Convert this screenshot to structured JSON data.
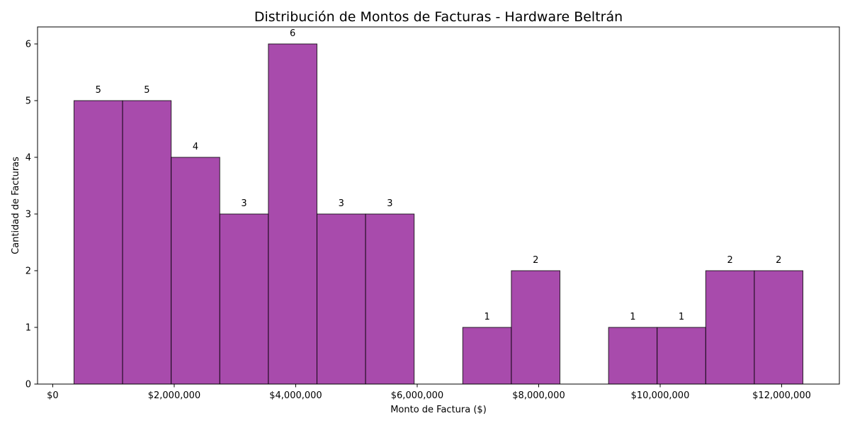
{
  "chart_data": {
    "type": "bar",
    "title": "Distribución de Montos de Facturas - Hardware Beltrán",
    "xlabel": "Monto de Factura ($)",
    "ylabel": "Cantidad de Facturas",
    "bar_color": "#9b30a0",
    "bar_edge_color": "#000000",
    "bins": [
      {
        "start": 350000,
        "end": 1150000,
        "count": 5
      },
      {
        "start": 1150000,
        "end": 1950000,
        "count": 5
      },
      {
        "start": 1950000,
        "end": 2750000,
        "count": 4
      },
      {
        "start": 2750000,
        "end": 3550000,
        "count": 3
      },
      {
        "start": 3550000,
        "end": 4350000,
        "count": 6
      },
      {
        "start": 4350000,
        "end": 5150000,
        "count": 3
      },
      {
        "start": 5150000,
        "end": 5950000,
        "count": 3
      },
      {
        "start": 5950000,
        "end": 6750000,
        "count": 0
      },
      {
        "start": 6750000,
        "end": 7550000,
        "count": 1
      },
      {
        "start": 7550000,
        "end": 8350000,
        "count": 2
      },
      {
        "start": 8350000,
        "end": 9150000,
        "count": 0
      },
      {
        "start": 9150000,
        "end": 9950000,
        "count": 1
      },
      {
        "start": 9950000,
        "end": 10750000,
        "count": 1
      },
      {
        "start": 10750000,
        "end": 11550000,
        "count": 2
      },
      {
        "start": 11550000,
        "end": 12350000,
        "count": 2
      }
    ],
    "xlim": [
      -250000,
      12950000
    ],
    "ylim": [
      0,
      6.3
    ],
    "x_ticks": [
      {
        "value": 0,
        "label": "$0"
      },
      {
        "value": 2000000,
        "label": "$2,000,000"
      },
      {
        "value": 4000000,
        "label": "$4,000,000"
      },
      {
        "value": 6000000,
        "label": "$6,000,000"
      },
      {
        "value": 8000000,
        "label": "$8,000,000"
      },
      {
        "value": 10000000,
        "label": "$10,000,000"
      },
      {
        "value": 12000000,
        "label": "$12,000,000"
      }
    ],
    "y_ticks": [
      {
        "value": 0,
        "label": "0"
      },
      {
        "value": 1,
        "label": "1"
      },
      {
        "value": 2,
        "label": "2"
      },
      {
        "value": 3,
        "label": "3"
      },
      {
        "value": 4,
        "label": "4"
      },
      {
        "value": 5,
        "label": "5"
      },
      {
        "value": 6,
        "label": "6"
      }
    ],
    "grid": false,
    "legend": "none"
  }
}
